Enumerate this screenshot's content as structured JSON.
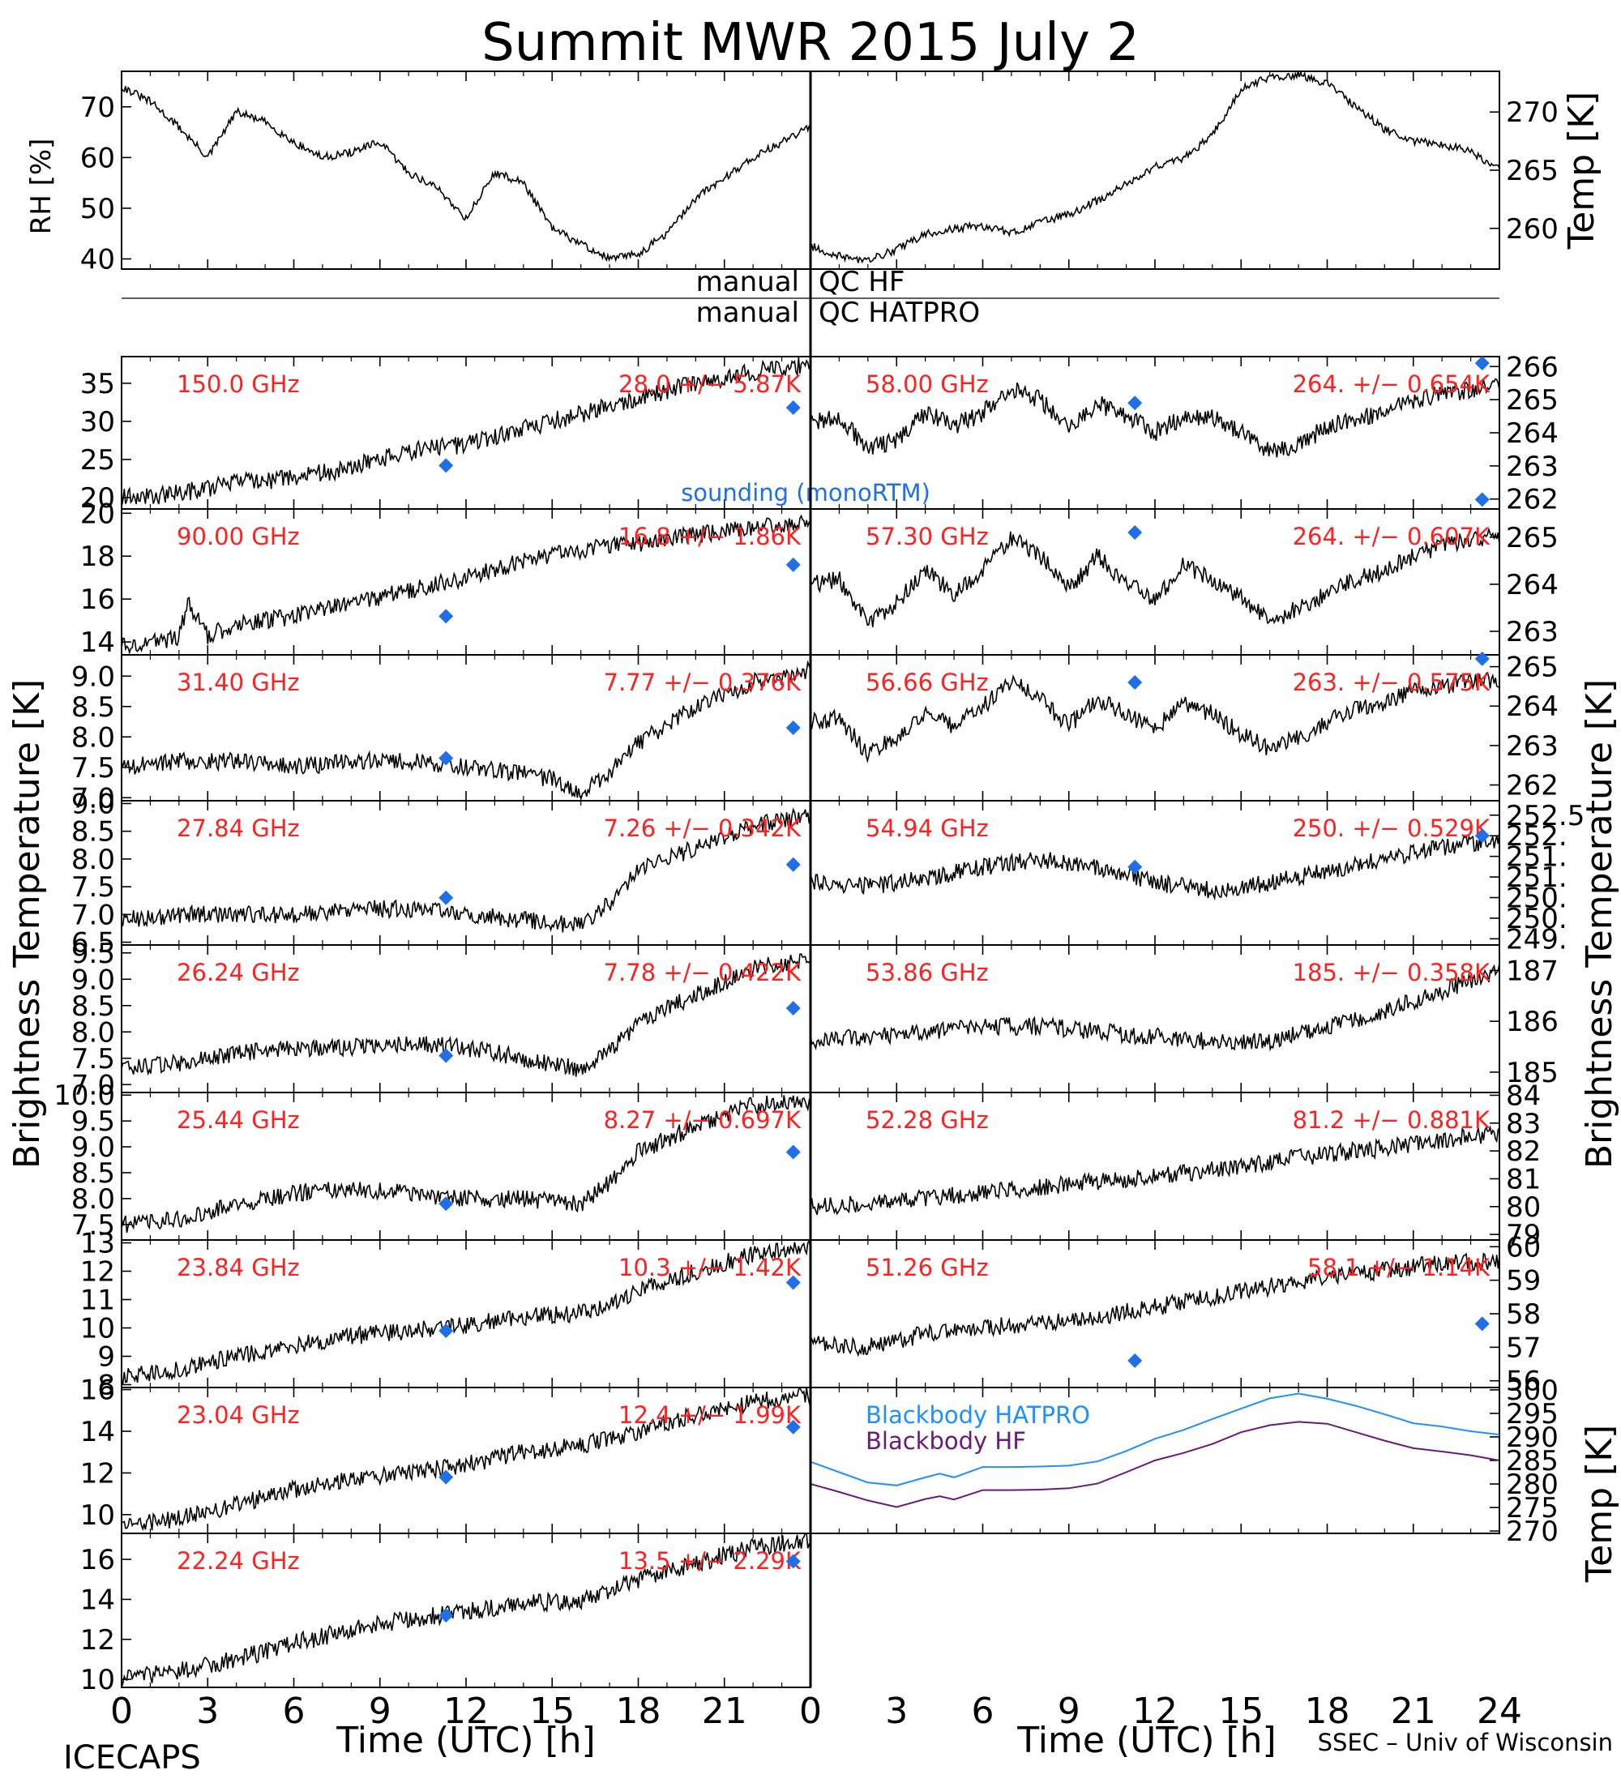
{
  "title": "Summit  MWR  2015  July   2",
  "footer": {
    "left": "ICECAPS",
    "right": "SSEC – Univ of Wisconsin",
    "xlabel_left": "Time  (UTC)  [h]",
    "xlabel_right": "Time  (UTC)  [h]"
  },
  "axis_titles": {
    "left_bt": "Brightness  Temperature  [K]",
    "right_bt": "Brightness  Temperature  [K]",
    "rh": "RH [%]",
    "temp_top": "Temp [K]",
    "temp_bb": "Temp [K]"
  },
  "qc": {
    "hf_left": "manual",
    "hf_right": "QC  HF",
    "hatpro_left": "manual",
    "hatpro_right": "QC  HATPRO"
  },
  "colors": {
    "sounding": "#1e6fe8",
    "bb_hatpro": "#1e90ff",
    "bb_hf": "#6a1a7a",
    "label": "#ff2020",
    "trace": "#000000"
  },
  "x_ticks": [
    "0",
    "3",
    "6",
    "9",
    "12",
    "15",
    "18",
    "21",
    "0",
    "3",
    "6",
    "9",
    "12",
    "15",
    "18",
    "21",
    "24"
  ],
  "chart_data": [
    {
      "type": "line",
      "panel": "rh",
      "side": "left",
      "ylabel": "RH [%]",
      "xlim": [
        0,
        24
      ],
      "ylim": [
        38,
        77
      ],
      "yticks": [
        "40",
        "50",
        "60",
        "70"
      ],
      "x": [
        0,
        1,
        2,
        3,
        4,
        5,
        6,
        7,
        8,
        9,
        10,
        11,
        12,
        13,
        14,
        15,
        16,
        17,
        18,
        19,
        20,
        21,
        22,
        23,
        24
      ],
      "values": [
        74,
        71,
        66,
        60,
        69,
        67,
        63,
        60,
        61,
        63,
        57,
        54,
        48,
        57,
        55,
        46,
        43,
        40,
        41,
        45,
        52,
        56,
        60,
        63,
        66
      ]
    },
    {
      "type": "line",
      "panel": "temp",
      "side": "right",
      "ylabel": "Temp [K]",
      "xlim": [
        0,
        24
      ],
      "ylim": [
        256.5,
        273.5
      ],
      "yticks": [
        "260",
        "265",
        "270"
      ],
      "x": [
        0,
        1,
        2,
        3,
        4,
        5,
        6,
        7,
        8,
        9,
        10,
        11,
        12,
        13,
        14,
        15,
        16,
        17,
        18,
        19,
        20,
        21,
        22,
        23,
        24
      ],
      "values": [
        258.5,
        257.6,
        257.2,
        258.2,
        259.5,
        260.0,
        260.2,
        259.6,
        260.5,
        261.2,
        262.4,
        263.8,
        265.3,
        266.0,
        268.0,
        272.0,
        273.0,
        273.2,
        272.5,
        270.5,
        268.5,
        267.5,
        267.2,
        266.6,
        265.0
      ]
    },
    {
      "type": "line",
      "panel": "tb",
      "side": "left",
      "freq": "150.0 GHz",
      "stat": "28.0  +/−  5.87K",
      "xlim": [
        0,
        24
      ],
      "ylim": [
        18.5,
        38.5
      ],
      "yticks": [
        "20",
        "25",
        "30",
        "35"
      ],
      "x": [
        0,
        2,
        4,
        6,
        8,
        10,
        12,
        14,
        16,
        18,
        20,
        22,
        24
      ],
      "values": [
        20,
        20.5,
        22,
        22.5,
        24,
        26,
        27,
        29,
        31,
        33,
        35,
        36.5,
        37.5
      ],
      "sounding": [
        [
          11.3,
          24.2
        ],
        [
          23.4,
          31.8
        ]
      ],
      "sounding_label": "sounding  (monoRTM)"
    },
    {
      "type": "line",
      "panel": "tb",
      "side": "left",
      "freq": "90.00 GHz",
      "stat": "16.8  +/−  1.86K",
      "xlim": [
        0,
        24
      ],
      "ylim": [
        13.4,
        20.2
      ],
      "yticks": [
        "14",
        "16",
        "18",
        "20"
      ],
      "x": [
        0,
        1,
        2,
        2.3,
        3,
        4,
        6,
        8,
        10,
        12,
        14,
        16,
        18,
        20,
        22,
        24
      ],
      "values": [
        13.8,
        14.0,
        14.2,
        15.8,
        14.3,
        14.8,
        15.2,
        15.8,
        16.4,
        17.0,
        17.8,
        18.3,
        18.6,
        19.0,
        19.3,
        19.6
      ],
      "sounding": [
        [
          11.3,
          15.2
        ],
        [
          23.4,
          17.6
        ]
      ]
    },
    {
      "type": "line",
      "panel": "tb",
      "side": "left",
      "freq": "31.40 GHz",
      "stat": "7.77  +/− 0.376K",
      "xlim": [
        0,
        24
      ],
      "ylim": [
        6.95,
        9.35
      ],
      "yticks": [
        "7.0",
        "7.5",
        "8.0",
        "8.5",
        "9.0"
      ],
      "x": [
        0,
        2,
        4,
        6,
        8,
        10,
        12,
        14,
        15,
        16,
        17,
        18,
        20,
        22,
        24
      ],
      "values": [
        7.5,
        7.6,
        7.6,
        7.5,
        7.6,
        7.6,
        7.5,
        7.4,
        7.3,
        7.1,
        7.4,
        7.9,
        8.5,
        8.9,
        9.1
      ],
      "sounding": [
        [
          11.3,
          7.65
        ],
        [
          23.4,
          8.15
        ]
      ]
    },
    {
      "type": "line",
      "panel": "tb",
      "side": "left",
      "freq": "27.84 GHz",
      "stat": "7.26  +/− 0.342K",
      "xlim": [
        0,
        24
      ],
      "ylim": [
        6.45,
        9.05
      ],
      "yticks": [
        "6.5",
        "7.0",
        "7.5",
        "8.0",
        "8.5",
        "9.0"
      ],
      "x": [
        0,
        2,
        4,
        6,
        8,
        10,
        12,
        14,
        16,
        17,
        18,
        20,
        22,
        24
      ],
      "values": [
        6.9,
        7.0,
        7.0,
        7.0,
        7.1,
        7.1,
        7.0,
        6.9,
        6.8,
        7.2,
        7.8,
        8.2,
        8.6,
        8.8
      ],
      "sounding": [
        [
          11.3,
          7.3
        ],
        [
          23.4,
          7.9
        ]
      ]
    },
    {
      "type": "line",
      "panel": "tb",
      "side": "left",
      "freq": "26.24 GHz",
      "stat": "7.78  +/− 0.422K",
      "xlim": [
        0,
        24
      ],
      "ylim": [
        6.85,
        9.65
      ],
      "yticks": [
        "7.0",
        "7.5",
        "8.0",
        "8.5",
        "9.0",
        "9.5"
      ],
      "x": [
        0,
        2,
        4,
        6,
        8,
        10,
        12,
        14,
        16,
        17,
        18,
        20,
        22,
        24
      ],
      "values": [
        7.3,
        7.4,
        7.6,
        7.7,
        7.7,
        7.8,
        7.7,
        7.5,
        7.3,
        7.6,
        8.2,
        8.7,
        9.2,
        9.4
      ],
      "sounding": [
        [
          11.3,
          7.55
        ],
        [
          23.4,
          8.45
        ]
      ]
    },
    {
      "type": "line",
      "panel": "tb",
      "side": "left",
      "freq": "25.44 GHz",
      "stat": "8.27  +/− 0.697K",
      "xlim": [
        0,
        24
      ],
      "ylim": [
        7.2,
        10.05
      ],
      "yticks": [
        "7.5",
        "8.0",
        "8.5",
        "9.0",
        "9.5",
        "10.0"
      ],
      "x": [
        0,
        2,
        4,
        6,
        8,
        10,
        12,
        14,
        16,
        17,
        18,
        20,
        22,
        24
      ],
      "values": [
        7.5,
        7.6,
        7.9,
        8.1,
        8.2,
        8.1,
        8.0,
        8.0,
        7.9,
        8.3,
        8.9,
        9.4,
        9.8,
        9.9
      ],
      "sounding": [
        [
          11.3,
          7.9
        ],
        [
          23.4,
          8.9
        ]
      ]
    },
    {
      "type": "line",
      "panel": "tb",
      "side": "left",
      "freq": "23.84 GHz",
      "stat": "10.3  +/−  1.42K",
      "xlim": [
        0,
        24
      ],
      "ylim": [
        7.9,
        13.1
      ],
      "yticks": [
        "8",
        "9",
        "10",
        "11",
        "12",
        "13"
      ],
      "x": [
        0,
        2,
        4,
        6,
        8,
        10,
        12,
        14,
        16,
        18,
        20,
        22,
        24
      ],
      "values": [
        8.3,
        8.5,
        9.0,
        9.4,
        9.7,
        9.9,
        10.1,
        10.4,
        10.5,
        11.3,
        12.0,
        12.6,
        12.9
      ],
      "sounding": [
        [
          11.3,
          9.9
        ],
        [
          23.4,
          11.6
        ]
      ]
    },
    {
      "type": "line",
      "panel": "tb",
      "side": "left",
      "freq": "23.04 GHz",
      "stat": "12.4  +/−  1.99K",
      "xlim": [
        0,
        24
      ],
      "ylim": [
        9.1,
        16.1
      ],
      "yticks": [
        "10",
        "12",
        "14",
        "16"
      ],
      "x": [
        0,
        2,
        4,
        6,
        8,
        10,
        12,
        14,
        16,
        18,
        20,
        22,
        24
      ],
      "values": [
        9.5,
        9.8,
        10.5,
        11.2,
        11.7,
        12.0,
        12.4,
        13.0,
        13.3,
        14.0,
        14.8,
        15.4,
        15.8
      ],
      "sounding": [
        [
          11.3,
          11.8
        ],
        [
          23.4,
          14.2
        ]
      ]
    },
    {
      "type": "line",
      "panel": "tb",
      "side": "left",
      "freq": "22.24 GHz",
      "stat": "13.5  +/−  2.29K",
      "xlim": [
        0,
        24
      ],
      "ylim": [
        9.6,
        17.3
      ],
      "yticks": [
        "10",
        "12",
        "14",
        "16"
      ],
      "x": [
        0,
        2,
        4,
        6,
        8,
        10,
        12,
        14,
        16,
        18,
        20,
        22,
        24
      ],
      "values": [
        10.0,
        10.4,
        11.0,
        11.8,
        12.5,
        13.0,
        13.4,
        13.8,
        14.0,
        15.0,
        15.8,
        16.6,
        17.0
      ],
      "sounding": [
        [
          11.3,
          13.2
        ],
        [
          23.4,
          15.9
        ]
      ]
    },
    {
      "type": "line",
      "panel": "tb",
      "side": "right",
      "freq": "58.00 GHz",
      "stat": "264.  +/− 0.654K",
      "xlim": [
        0,
        24
      ],
      "ylim": [
        261.7,
        266.3
      ],
      "yticks": [
        "262",
        "263",
        "264",
        "265",
        "266"
      ],
      "x": [
        0,
        1,
        2,
        3,
        4,
        5,
        6,
        7,
        8,
        9,
        10,
        11,
        12,
        13,
        14,
        15,
        16,
        17,
        18,
        19,
        20,
        21,
        22,
        23,
        24
      ],
      "values": [
        264.3,
        264.5,
        263.5,
        263.8,
        264.6,
        264.2,
        264.6,
        265.3,
        265.0,
        264.2,
        264.9,
        264.5,
        264.0,
        264.5,
        264.5,
        264.0,
        263.4,
        263.6,
        264.2,
        264.4,
        264.6,
        265.0,
        265.2,
        265.3,
        265.5
      ],
      "sounding": [
        [
          11.3,
          264.9
        ],
        [
          23.4,
          266.1
        ]
      ]
    },
    {
      "type": "line",
      "panel": "tb",
      "side": "right",
      "freq": "57.30 GHz",
      "stat": "264.  +/− 0.607K",
      "xlim": [
        0,
        24
      ],
      "ylim": [
        262.5,
        265.6
      ],
      "yticks": [
        "263",
        "264",
        "265"
      ],
      "x": [
        0,
        1,
        2,
        3,
        4,
        5,
        6,
        7,
        8,
        9,
        10,
        11,
        12,
        13,
        14,
        15,
        16,
        17,
        18,
        19,
        20,
        21,
        22,
        23,
        24
      ],
      "values": [
        264.0,
        264.1,
        263.2,
        263.6,
        264.3,
        263.8,
        264.3,
        265.0,
        264.6,
        263.9,
        264.6,
        264.0,
        263.7,
        264.4,
        264.1,
        263.7,
        263.2,
        263.5,
        263.8,
        264.1,
        264.3,
        264.6,
        264.8,
        265.0,
        265.0
      ],
      "sounding": [
        [
          11.3,
          265.1
        ],
        [
          23.4,
          265.8
        ]
      ]
    },
    {
      "type": "line",
      "panel": "tb",
      "side": "right",
      "freq": "56.66 GHz",
      "stat": "263.  +/− 0.575K",
      "xlim": [
        0,
        24
      ],
      "ylim": [
        261.6,
        265.3
      ],
      "yticks": [
        "262",
        "263",
        "264",
        "265"
      ],
      "x": [
        0,
        1,
        2,
        3,
        4,
        5,
        6,
        7,
        8,
        9,
        10,
        11,
        12,
        13,
        14,
        15,
        16,
        17,
        18,
        19,
        20,
        21,
        22,
        23,
        24
      ],
      "values": [
        263.6,
        263.7,
        262.8,
        263.2,
        263.8,
        263.5,
        264.0,
        264.6,
        264.2,
        263.5,
        264.2,
        263.8,
        263.4,
        264.1,
        263.8,
        263.3,
        262.9,
        263.2,
        263.6,
        263.9,
        264.1,
        264.4,
        264.5,
        264.6,
        264.7
      ],
      "sounding": [
        [
          11.3,
          264.6
        ],
        [
          23.4,
          265.2
        ]
      ]
    },
    {
      "type": "line",
      "panel": "tb",
      "side": "right",
      "freq": "54.94 GHz",
      "stat": "250.  +/− 0.529K",
      "xlim": [
        0,
        24
      ],
      "ylim": [
        248.9,
        252.6
      ],
      "yticks": [
        "249.",
        "250.",
        "250.",
        "251.",
        "251.",
        "252.",
        "252.5"
      ],
      "x": [
        0,
        2,
        4,
        6,
        8,
        10,
        12,
        14,
        16,
        18,
        20,
        22,
        24
      ],
      "values": [
        250.5,
        250.4,
        250.6,
        250.9,
        251.1,
        250.9,
        250.5,
        250.3,
        250.5,
        250.8,
        251.1,
        251.4,
        251.6
      ],
      "sounding": [
        [
          11.3,
          250.9
        ],
        [
          23.4,
          251.7
        ]
      ]
    },
    {
      "type": "line",
      "panel": "tb",
      "side": "right",
      "freq": "53.86 GHz",
      "stat": "185.  +/− 0.358K",
      "xlim": [
        0,
        24
      ],
      "ylim": [
        184.6,
        187.5
      ],
      "yticks": [
        "185",
        "186",
        "187"
      ],
      "x": [
        0,
        2,
        4,
        6,
        8,
        10,
        12,
        14,
        16,
        18,
        20,
        22,
        24
      ],
      "values": [
        185.6,
        185.7,
        185.8,
        185.9,
        185.9,
        185.8,
        185.7,
        185.6,
        185.6,
        185.9,
        186.2,
        186.6,
        187.0
      ],
      "sounding": []
    },
    {
      "type": "line",
      "panel": "tb",
      "side": "right",
      "freq": "52.28 GHz",
      "stat": "81.2  +/− 0.881K",
      "xlim": [
        0,
        24
      ],
      "ylim": [
        78.8,
        84.1
      ],
      "yticks": [
        "79",
        "80",
        "81",
        "82",
        "83",
        "84"
      ],
      "x": [
        0,
        2,
        4,
        6,
        8,
        10,
        12,
        14,
        16,
        18,
        20,
        22,
        24
      ],
      "values": [
        80.0,
        80.1,
        80.3,
        80.5,
        80.7,
        80.9,
        81.1,
        81.3,
        81.6,
        81.9,
        82.1,
        82.4,
        82.6
      ],
      "sounding": []
    },
    {
      "type": "line",
      "panel": "tb",
      "side": "right",
      "freq": "51.26 GHz",
      "stat": "58.1  +/− 1.14K",
      "xlim": [
        0,
        24
      ],
      "ylim": [
        55.8,
        60.2
      ],
      "yticks": [
        "56",
        "57",
        "58",
        "59",
        "60"
      ],
      "x": [
        0,
        2,
        4,
        6,
        8,
        10,
        12,
        14,
        16,
        18,
        20,
        22,
        24
      ],
      "values": [
        57.2,
        57.0,
        57.4,
        57.6,
        57.7,
        57.9,
        58.2,
        58.5,
        58.8,
        59.1,
        59.3,
        59.5,
        59.6
      ],
      "sounding": [
        [
          11.3,
          56.6
        ],
        [
          23.4,
          57.7
        ]
      ]
    },
    {
      "type": "line",
      "panel": "bb",
      "side": "right",
      "ylabel": "Temp [K]",
      "xlim": [
        0,
        24
      ],
      "ylim": [
        269.5,
        300.5
      ],
      "yticks": [
        "270",
        "275",
        "280",
        "285",
        "290",
        "295",
        "300"
      ],
      "series": [
        {
          "name": "Blackbody  HATPRO",
          "x": [
            0,
            1,
            2,
            3,
            4,
            4.5,
            5,
            6,
            7,
            8,
            9,
            10,
            11,
            12,
            13,
            14,
            15,
            16,
            17,
            18,
            19,
            20,
            21,
            22,
            23,
            24
          ],
          "values": [
            284.7,
            282.5,
            280.3,
            279.7,
            281.4,
            282.2,
            281.4,
            283.6,
            283.6,
            283.7,
            283.9,
            284.8,
            287.0,
            289.6,
            291.5,
            293.8,
            296.0,
            298.2,
            299.2,
            298.1,
            296.6,
            294.8,
            292.9,
            292.2,
            291.2,
            290.5
          ]
        },
        {
          "name": "Blackbody  HF",
          "x": [
            0,
            1,
            2,
            3,
            4,
            4.5,
            5,
            6,
            7,
            8,
            9,
            10,
            11,
            12,
            13,
            14,
            15,
            16,
            17,
            18,
            19,
            20,
            21,
            22,
            23,
            24
          ],
          "values": [
            280.0,
            278.3,
            276.5,
            275.1,
            276.8,
            277.4,
            276.7,
            278.7,
            278.7,
            278.8,
            279.1,
            280.1,
            282.5,
            285.0,
            286.6,
            288.5,
            291.0,
            292.5,
            293.2,
            292.8,
            291.0,
            289.2,
            287.6,
            286.9,
            286.1,
            285.0
          ]
        }
      ]
    }
  ]
}
